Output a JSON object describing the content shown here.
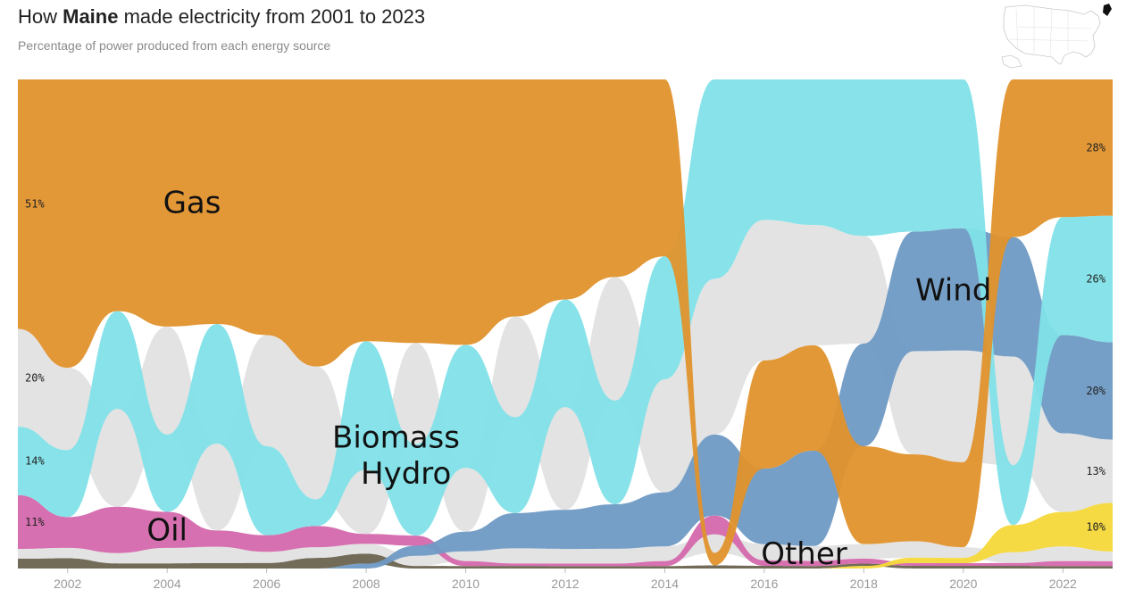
{
  "header": {
    "title_prefix": "How ",
    "title_state": "Maine",
    "title_suffix": " made electricity from 2001 to 2023",
    "subtitle": "Percentage of power produced from each energy source"
  },
  "colors": {
    "Gas": "#e0922c",
    "Hydro": "#81e2e8",
    "Biomass": "#e2e2e2",
    "Oil": "#d468ac",
    "Wind": "#6f9ac4",
    "Other": "#e2e2e2",
    "Coal": "#6a634f",
    "Solar": "#f5d83a"
  },
  "locator_icon": "us-map-locator-maine-highlighted",
  "chart_data": {
    "type": "area",
    "subtype": "ranked-bump-stream",
    "years": [
      2001,
      2002,
      2003,
      2004,
      2005,
      2006,
      2007,
      2008,
      2009,
      2010,
      2011,
      2012,
      2013,
      2014,
      2015,
      2016,
      2017,
      2018,
      2019,
      2020,
      2021,
      2022,
      2023
    ],
    "x_ticks": [
      "2002",
      "2004",
      "2006",
      "2008",
      "2010",
      "2012",
      "2014",
      "2016",
      "2018",
      "2020",
      "2022"
    ],
    "series": [
      {
        "name": "Gas",
        "values": [
          51,
          56,
          45,
          48,
          45,
          46,
          54,
          53,
          52,
          54,
          47,
          45,
          40,
          36,
          2,
          20,
          21,
          20,
          16,
          16,
          29,
          28,
          28
        ]
      },
      {
        "name": "Hydro",
        "values": [
          14,
          13,
          19,
          15,
          22,
          16,
          5,
          26,
          18,
          25,
          19,
          22,
          21,
          25,
          32,
          26,
          29,
          32,
          28,
          28,
          11,
          24,
          26
        ]
      },
      {
        "name": "Biomass",
        "values": [
          20,
          16,
          19,
          21,
          16,
          20,
          25,
          13,
          20,
          13,
          20,
          21,
          25,
          23,
          25,
          26,
          24,
          22,
          19,
          21,
          20,
          16,
          13
        ]
      },
      {
        "name": "Oil",
        "values": [
          11,
          6,
          9,
          7,
          3,
          3,
          4,
          2,
          2,
          1,
          0.5,
          0.5,
          0.5,
          1,
          3,
          1,
          1,
          1,
          0.5,
          0.5,
          0.5,
          1,
          1
        ]
      },
      {
        "name": "Wind",
        "values": [
          0,
          0,
          0,
          0,
          0,
          0,
          0,
          1,
          2,
          4,
          7,
          8,
          9,
          11,
          13,
          14,
          19,
          21,
          22,
          23,
          22,
          20,
          20
        ]
      },
      {
        "name": "Other",
        "values": [
          2,
          2,
          2,
          3,
          3,
          2,
          2,
          2,
          2,
          2,
          3,
          3,
          3,
          3,
          3,
          3,
          3,
          3,
          3,
          2,
          2,
          3,
          2
        ]
      },
      {
        "name": "Coal",
        "values": [
          2,
          2,
          1,
          1,
          1,
          1,
          2,
          2,
          0.5,
          0.5,
          0.5,
          0.5,
          0.5,
          0.5,
          0.5,
          0.5,
          0.5,
          0.5,
          0.5,
          0.5,
          0.5,
          0.5,
          0.5
        ]
      },
      {
        "name": "Solar",
        "values": [
          0,
          0,
          0,
          0,
          0,
          0,
          0,
          0,
          0,
          0,
          0,
          0,
          0,
          0,
          0,
          0,
          0,
          0.5,
          1,
          1,
          5,
          7,
          10
        ]
      }
    ],
    "start_labels": [
      {
        "series": "Gas",
        "text": "51%"
      },
      {
        "series": "Biomass",
        "text": "20%"
      },
      {
        "series": "Hydro",
        "text": "14%"
      },
      {
        "series": "Oil",
        "text": "11%"
      }
    ],
    "end_labels": [
      {
        "series": "Gas",
        "text": "28%"
      },
      {
        "series": "Hydro",
        "text": "26%"
      },
      {
        "series": "Wind",
        "text": "20%"
      },
      {
        "series": "Biomass",
        "text": "13%"
      },
      {
        "series": "Solar",
        "text": "10%"
      }
    ],
    "inline_labels": [
      {
        "series": "Gas",
        "text": "Gas",
        "year": 2004.5
      },
      {
        "series": "Hydro",
        "text": "Hydro",
        "year": 2008.8
      },
      {
        "series": "Biomass",
        "text": "Biomass",
        "year": 2008.6
      },
      {
        "series": "Oil",
        "text": "Oil",
        "year": 2004
      },
      {
        "series": "Wind",
        "text": "Wind",
        "year": 2019.8
      },
      {
        "series": "Other",
        "text": "Other",
        "year": 2016.8
      }
    ]
  }
}
